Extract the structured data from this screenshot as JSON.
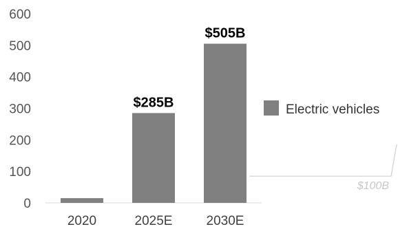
{
  "chart_data": {
    "type": "bar",
    "categories": [
      "2020",
      "2025E",
      "2030E"
    ],
    "series": [
      {
        "name": "Electric vehicles",
        "values": [
          15,
          285,
          505
        ],
        "data_labels": [
          "",
          "$285B",
          "$505B"
        ],
        "color": "#808080"
      }
    ],
    "ylim": [
      0,
      600
    ],
    "yticks": [
      0,
      100,
      200,
      300,
      400,
      500,
      600
    ],
    "grid": false,
    "legend_position": "right",
    "annotation": {
      "text": "$100B",
      "value": 100
    }
  }
}
